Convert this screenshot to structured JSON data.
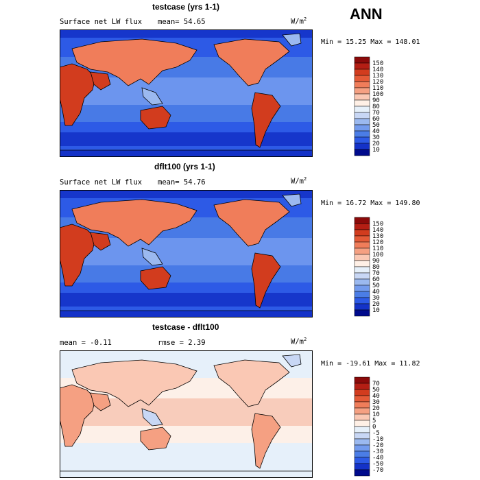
{
  "season": "ANN",
  "panels": [
    {
      "title": "testcase (yrs 1-1)",
      "variable": "Surface net LW flux",
      "stat": "mean=  54.65",
      "units": "W/m",
      "units_exp": "2",
      "minmax": "Min =  15.25 Max = 148.01",
      "colorbar": {
        "labels": [
          "150",
          "140",
          "130",
          "120",
          "110",
          "100",
          "90",
          "80",
          "70",
          "60",
          "50",
          "40",
          "30",
          "20",
          "10"
        ],
        "colors": [
          "#8b0a0a",
          "#b41e14",
          "#d23c1e",
          "#e45a37",
          "#f07d5a",
          "#f5a082",
          "#fac8b4",
          "#fff0e6",
          "#e6f0fa",
          "#c8d7f5",
          "#9bb9f0",
          "#739bee",
          "#4b7de6",
          "#2d5ae6",
          "#1432c8",
          "#000a8c"
        ]
      },
      "map_palette": {
        "ocean_low": "#2d5ae6",
        "ocean_mid": "#4b7de6",
        "ocean_high": "#739bee",
        "land_hot": "#d23c1e",
        "land_warm": "#f07d5a",
        "land_mild": "#9bb9f0",
        "polar": "#1432c8"
      }
    },
    {
      "title": "dflt100 (yrs 1-1)",
      "variable": "Surface net LW flux",
      "stat": "mean=  54.76",
      "units": "W/m",
      "units_exp": "2",
      "minmax": "Min =  16.72 Max = 149.80",
      "colorbar": {
        "labels": [
          "150",
          "140",
          "130",
          "120",
          "110",
          "100",
          "90",
          "80",
          "70",
          "60",
          "50",
          "40",
          "30",
          "20",
          "10"
        ],
        "colors": [
          "#8b0a0a",
          "#b41e14",
          "#d23c1e",
          "#e45a37",
          "#f07d5a",
          "#f5a082",
          "#fac8b4",
          "#fff0e6",
          "#e6f0fa",
          "#c8d7f5",
          "#9bb9f0",
          "#739bee",
          "#4b7de6",
          "#2d5ae6",
          "#1432c8",
          "#000a8c"
        ]
      },
      "map_palette": {
        "ocean_low": "#2d5ae6",
        "ocean_mid": "#4b7de6",
        "ocean_high": "#739bee",
        "land_hot": "#d23c1e",
        "land_warm": "#f07d5a",
        "land_mild": "#9bb9f0",
        "polar": "#1432c8"
      }
    },
    {
      "title": "testcase - dflt100",
      "variable": "mean =  -0.11",
      "stat": "rmse =   2.39",
      "units": "W/m",
      "units_exp": "2",
      "minmax": "Min = -19.61 Max =  11.82",
      "colorbar": {
        "labels": [
          "70",
          "50",
          "40",
          "30",
          "20",
          "10",
          "5",
          "0",
          "-5",
          "-10",
          "-20",
          "-30",
          "-40",
          "-50",
          "-70"
        ],
        "colors": [
          "#8b0a0a",
          "#b41e14",
          "#d23c1e",
          "#e45a37",
          "#f07d5a",
          "#f5a082",
          "#fac8b4",
          "#fff0e6",
          "#e6f0fa",
          "#c8d7f5",
          "#9bb9f0",
          "#739bee",
          "#4b7de6",
          "#2d5ae6",
          "#1432c8",
          "#000a8c"
        ]
      },
      "map_palette": {
        "ocean_low": "#e6f0fa",
        "ocean_mid": "#fff0e6",
        "ocean_high": "#fac8b4",
        "land_hot": "#f5a082",
        "land_warm": "#fac8b4",
        "land_mild": "#c8d7f5",
        "polar": "#e6f0fa"
      }
    }
  ]
}
